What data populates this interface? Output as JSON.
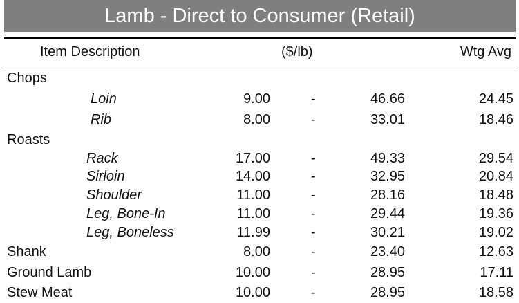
{
  "title": "Lamb - Direct to Consumer (Retail)",
  "header": {
    "item_description": "Item Description",
    "price_unit": "($/lb)",
    "wtg_avg": "Wtg Avg"
  },
  "rows": [
    {
      "type": "category",
      "label": "Chops"
    },
    {
      "type": "item",
      "label": "Loin",
      "low": "9.00",
      "sep": "-",
      "high": "46.66",
      "avg": "24.45"
    },
    {
      "type": "item",
      "label": "Rib",
      "low": "8.00",
      "sep": "-",
      "high": "33.01",
      "avg": "18.46"
    },
    {
      "type": "category",
      "label": "Roasts"
    },
    {
      "type": "item",
      "label": "Rack",
      "low": "17.00",
      "sep": "-",
      "high": "49.33",
      "avg": "29.54"
    },
    {
      "type": "item",
      "label": "Sirloin",
      "low": "14.00",
      "sep": "-",
      "high": "32.95",
      "avg": "20.84"
    },
    {
      "type": "item",
      "label": "Shoulder",
      "low": "11.00",
      "sep": "-",
      "high": "28.16",
      "avg": "18.48"
    },
    {
      "type": "item",
      "label": "Leg, Bone-In",
      "low": "11.00",
      "sep": "-",
      "high": "29.44",
      "avg": "19.36"
    },
    {
      "type": "item",
      "label": "Leg, Boneless",
      "low": "11.99",
      "sep": "-",
      "high": "30.21",
      "avg": "19.02"
    },
    {
      "type": "category-value",
      "label": "Shank",
      "low": "8.00",
      "sep": "-",
      "high": "23.40",
      "avg": "12.63"
    },
    {
      "type": "category-value",
      "label": "Ground Lamb",
      "low": "10.00",
      "sep": "-",
      "high": "28.95",
      "avg": "17.11"
    },
    {
      "type": "category-value",
      "label": "Stew Meat",
      "low": "10.00",
      "sep": "-",
      "high": "28.95",
      "avg": "18.58"
    }
  ]
}
